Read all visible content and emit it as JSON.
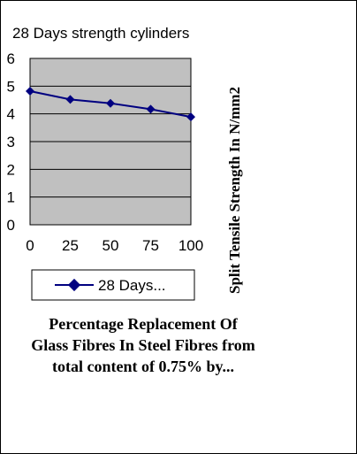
{
  "chart_data": {
    "type": "line",
    "title": "28 Days strength cylinders",
    "xlabel": "Percentage  Replacement Of Glass Fibres In Steel Fibres from total content of 0.75% by...",
    "xlabel_lines": [
      "Percentage  Replacement Of",
      "Glass Fibres In Steel Fibres from",
      "total content of 0.75% by..."
    ],
    "ylabel": "Split Tensile Strength In N/mm2",
    "categories": [
      "0",
      "25",
      "50",
      "75",
      "100"
    ],
    "x": [
      0,
      25,
      50,
      75,
      100
    ],
    "xlim": [
      0,
      100
    ],
    "ylim": [
      0,
      6
    ],
    "y_ticks": [
      "0",
      "1",
      "2",
      "3",
      "4",
      "5",
      "6"
    ],
    "grid": true,
    "legend_position": "bottom-left",
    "series": [
      {
        "name": "28 Days...",
        "values": [
          4.82,
          4.52,
          4.38,
          4.17,
          3.89
        ]
      }
    ],
    "colors": {
      "plot_background": "#c0c0c0",
      "series_line": "#000080",
      "grid": "#000000"
    }
  }
}
